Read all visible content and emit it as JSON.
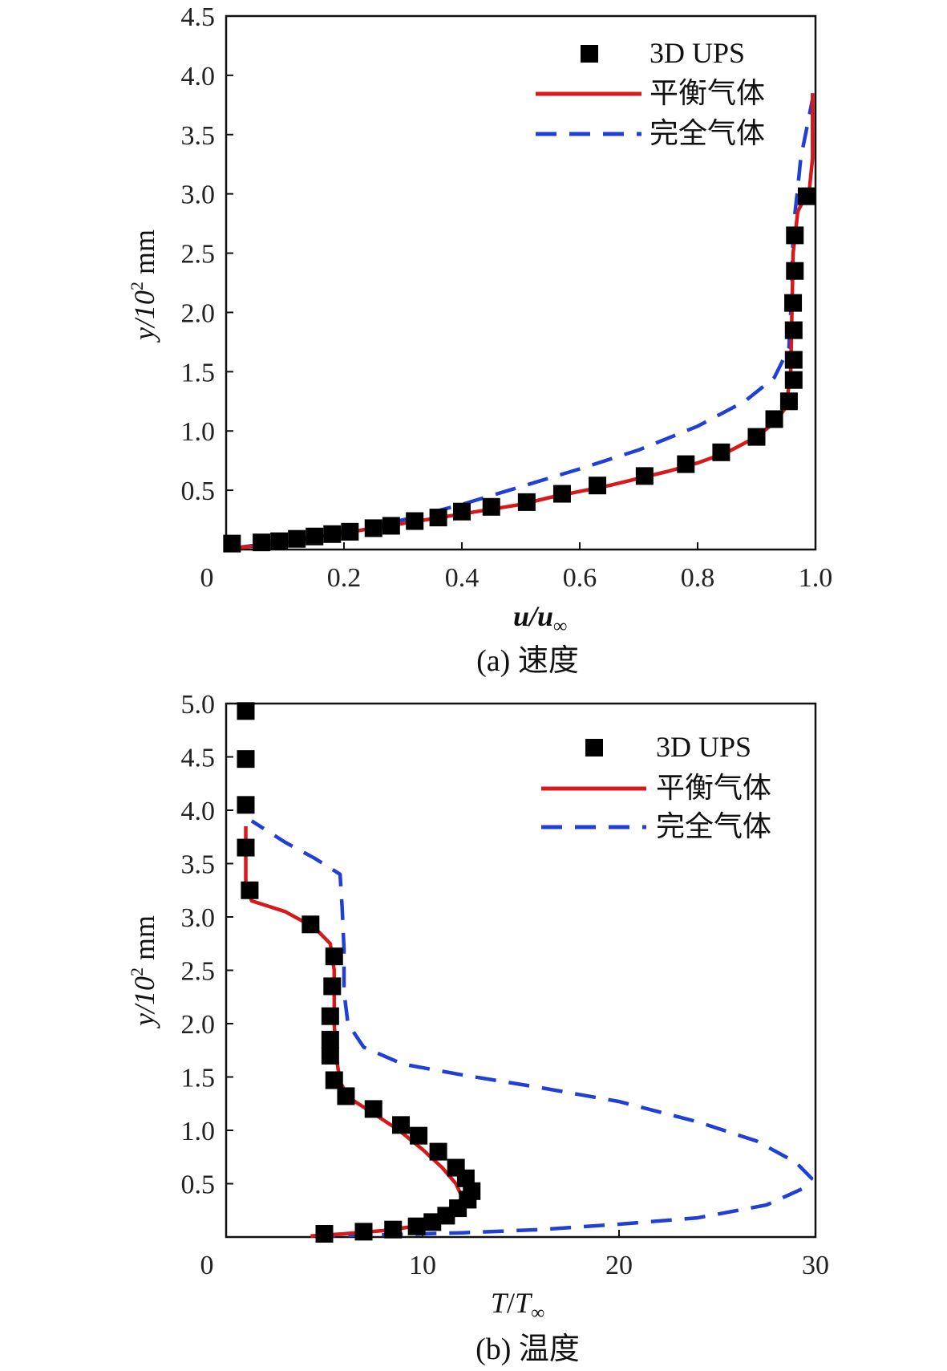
{
  "chart_data": [
    {
      "type": "scatter+line",
      "caption": "(a) 速度",
      "xlabel_main": "u",
      "xlabel_sub": "∞",
      "ylabel": "y/10",
      "ylabel_sup": "2",
      "ylabel_unit": "mm",
      "xlim": [
        0,
        1.0
      ],
      "ylim": [
        0,
        4.5
      ],
      "x_ticks": [
        0,
        0.2,
        0.4,
        0.6,
        0.8,
        1.0
      ],
      "x_tick_labels": [
        "0",
        "0.2",
        "0.4",
        "0.6",
        "0.8",
        "1.0"
      ],
      "y_ticks": [
        0.5,
        1.0,
        1.5,
        2.0,
        2.5,
        3.0,
        3.5,
        4.0,
        4.5
      ],
      "y_tick_labels": [
        "0.5",
        "1.0",
        "1.5",
        "2.0",
        "2.5",
        "3.0",
        "3.5",
        "4.0",
        "4.5"
      ],
      "legend_position": "top-right",
      "series": [
        {
          "name": "3D UPS",
          "kind": "markers",
          "color": "#000000",
          "points": [
            [
              0.01,
              0.05
            ],
            [
              0.06,
              0.06
            ],
            [
              0.09,
              0.07
            ],
            [
              0.12,
              0.09
            ],
            [
              0.15,
              0.11
            ],
            [
              0.18,
              0.13
            ],
            [
              0.21,
              0.15
            ],
            [
              0.25,
              0.18
            ],
            [
              0.28,
              0.2
            ],
            [
              0.32,
              0.24
            ],
            [
              0.36,
              0.27
            ],
            [
              0.4,
              0.32
            ],
            [
              0.45,
              0.36
            ],
            [
              0.51,
              0.4
            ],
            [
              0.57,
              0.47
            ],
            [
              0.63,
              0.54
            ],
            [
              0.71,
              0.62
            ],
            [
              0.78,
              0.72
            ],
            [
              0.84,
              0.82
            ],
            [
              0.9,
              0.95
            ],
            [
              0.93,
              1.1
            ],
            [
              0.955,
              1.25
            ],
            [
              0.963,
              1.43
            ],
            [
              0.963,
              1.6
            ],
            [
              0.963,
              1.85
            ],
            [
              0.962,
              2.08
            ],
            [
              0.965,
              2.35
            ],
            [
              0.965,
              2.65
            ],
            [
              0.985,
              2.98
            ]
          ]
        },
        {
          "name": "平衡气体",
          "kind": "solid",
          "color": "#d7191c",
          "points": [
            [
              0.01,
              0.01
            ],
            [
              0.05,
              0.03
            ],
            [
              0.1,
              0.06
            ],
            [
              0.15,
              0.1
            ],
            [
              0.2,
              0.14
            ],
            [
              0.25,
              0.18
            ],
            [
              0.3,
              0.22
            ],
            [
              0.35,
              0.26
            ],
            [
              0.4,
              0.3
            ],
            [
              0.45,
              0.34
            ],
            [
              0.5,
              0.38
            ],
            [
              0.55,
              0.44
            ],
            [
              0.6,
              0.49
            ],
            [
              0.65,
              0.54
            ],
            [
              0.7,
              0.6
            ],
            [
              0.75,
              0.66
            ],
            [
              0.8,
              0.73
            ],
            [
              0.85,
              0.82
            ],
            [
              0.9,
              0.95
            ],
            [
              0.93,
              1.07
            ],
            [
              0.95,
              1.2
            ],
            [
              0.958,
              1.5
            ],
            [
              0.96,
              2.0
            ],
            [
              0.962,
              2.5
            ],
            [
              0.97,
              2.85
            ],
            [
              0.99,
              3.05
            ],
            [
              0.995,
              3.3
            ],
            [
              0.995,
              3.85
            ]
          ]
        },
        {
          "name": "完全气体",
          "kind": "dashed",
          "color": "#1f3fd6",
          "points": [
            [
              0.01,
              0.01
            ],
            [
              0.1,
              0.07
            ],
            [
              0.2,
              0.15
            ],
            [
              0.3,
              0.25
            ],
            [
              0.4,
              0.38
            ],
            [
              0.5,
              0.53
            ],
            [
              0.6,
              0.68
            ],
            [
              0.7,
              0.84
            ],
            [
              0.8,
              1.04
            ],
            [
              0.88,
              1.25
            ],
            [
              0.93,
              1.45
            ],
            [
              0.955,
              1.7
            ],
            [
              0.96,
              2.2
            ],
            [
              0.962,
              2.7
            ],
            [
              0.97,
              3.05
            ],
            [
              0.975,
              3.3
            ],
            [
              0.985,
              3.55
            ],
            [
              0.995,
              3.8
            ]
          ]
        }
      ]
    },
    {
      "type": "scatter+line",
      "caption": "(b) 温度",
      "xlabel_main": "T",
      "xlabel_sub": "∞",
      "ylabel": "y/10",
      "ylabel_sup": "2",
      "ylabel_unit": "mm",
      "xlim": [
        0,
        30
      ],
      "ylim": [
        0,
        5.0
      ],
      "x_ticks": [
        0,
        10,
        20,
        30
      ],
      "x_tick_labels": [
        "0",
        "10",
        "20",
        "30"
      ],
      "y_ticks": [
        0.5,
        1.0,
        1.5,
        2.0,
        2.5,
        3.0,
        3.5,
        4.0,
        4.5,
        5.0
      ],
      "y_tick_labels": [
        "0.5",
        "1.0",
        "1.5",
        "2.0",
        "2.5",
        "3.0",
        "3.5",
        "4.0",
        "4.5",
        "5.0"
      ],
      "legend_position": "top-right",
      "series": [
        {
          "name": "3D UPS",
          "kind": "markers",
          "color": "#000000",
          "points": [
            [
              5.0,
              0.03
            ],
            [
              7.0,
              0.05
            ],
            [
              8.5,
              0.07
            ],
            [
              9.7,
              0.1
            ],
            [
              10.5,
              0.14
            ],
            [
              11.2,
              0.2
            ],
            [
              11.8,
              0.27
            ],
            [
              12.3,
              0.35
            ],
            [
              12.5,
              0.43
            ],
            [
              12.2,
              0.55
            ],
            [
              11.7,
              0.65
            ],
            [
              10.8,
              0.8
            ],
            [
              9.8,
              0.95
            ],
            [
              8.9,
              1.05
            ],
            [
              7.5,
              1.2
            ],
            [
              6.1,
              1.32
            ],
            [
              5.5,
              1.47
            ],
            [
              5.3,
              1.7
            ],
            [
              5.3,
              1.85
            ],
            [
              5.3,
              2.07
            ],
            [
              5.4,
              2.35
            ],
            [
              5.5,
              2.63
            ],
            [
              4.3,
              2.93
            ],
            [
              1.2,
              3.25
            ],
            [
              1.0,
              3.65
            ],
            [
              1.0,
              4.05
            ],
            [
              1.0,
              4.48
            ],
            [
              1.0,
              4.93
            ]
          ]
        },
        {
          "name": "平衡气体",
          "kind": "solid",
          "color": "#d7191c",
          "points": [
            [
              4.3,
              0.01
            ],
            [
              6.0,
              0.03
            ],
            [
              8.0,
              0.06
            ],
            [
              9.6,
              0.1
            ],
            [
              10.6,
              0.15
            ],
            [
              11.3,
              0.22
            ],
            [
              11.8,
              0.3
            ],
            [
              12.0,
              0.38
            ],
            [
              11.7,
              0.5
            ],
            [
              11.0,
              0.65
            ],
            [
              10.0,
              0.82
            ],
            [
              8.8,
              1.0
            ],
            [
              7.4,
              1.17
            ],
            [
              6.3,
              1.3
            ],
            [
              5.8,
              1.45
            ],
            [
              5.6,
              1.7
            ],
            [
              5.5,
              2.0
            ],
            [
              5.5,
              2.5
            ],
            [
              5.3,
              2.75
            ],
            [
              4.5,
              2.9
            ],
            [
              3.0,
              3.05
            ],
            [
              1.3,
              3.15
            ],
            [
              1.0,
              3.3
            ],
            [
              1.0,
              3.6
            ],
            [
              1.0,
              3.85
            ]
          ]
        },
        {
          "name": "完全气体",
          "kind": "dashed",
          "color": "#1f3fd6",
          "points": [
            [
              4.5,
              0.01
            ],
            [
              8.0,
              0.02
            ],
            [
              12.0,
              0.04
            ],
            [
              16.0,
              0.07
            ],
            [
              20.0,
              0.12
            ],
            [
              24.0,
              0.18
            ],
            [
              27.5,
              0.3
            ],
            [
              29.3,
              0.45
            ],
            [
              29.8,
              0.55
            ],
            [
              29.0,
              0.7
            ],
            [
              27.0,
              0.9
            ],
            [
              24.0,
              1.08
            ],
            [
              20.0,
              1.27
            ],
            [
              16.0,
              1.4
            ],
            [
              12.0,
              1.52
            ],
            [
              9.0,
              1.62
            ],
            [
              7.0,
              1.78
            ],
            [
              6.2,
              2.0
            ],
            [
              6.0,
              2.3
            ],
            [
              6.0,
              2.7
            ],
            [
              5.9,
              3.1
            ],
            [
              5.8,
              3.4
            ],
            [
              4.5,
              3.55
            ],
            [
              3.0,
              3.7
            ],
            [
              1.3,
              3.9
            ]
          ]
        }
      ]
    }
  ]
}
